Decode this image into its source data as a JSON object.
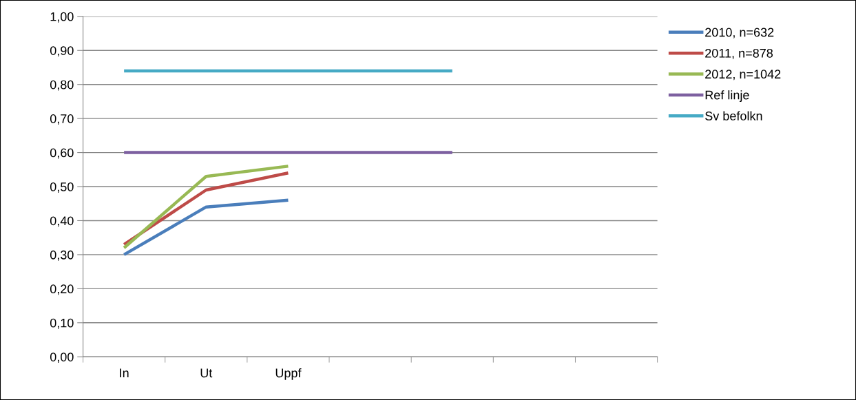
{
  "chart_data": {
    "type": "line",
    "categories": [
      "In",
      "Ut",
      "Uppf",
      null,
      null,
      null,
      null
    ],
    "series": [
      {
        "name": "2010, n=632",
        "color": "#4a7ebb",
        "values": [
          0.3,
          0.44,
          0.46,
          null,
          null,
          null,
          null
        ]
      },
      {
        "name": "2011, n=878",
        "color": "#be4b48",
        "values": [
          0.33,
          0.49,
          0.54,
          null,
          null,
          null,
          null
        ]
      },
      {
        "name": "2012, n=1042",
        "color": "#98b954",
        "values": [
          0.32,
          0.53,
          0.56,
          null,
          null,
          null,
          null
        ]
      },
      {
        "name": "Ref linje",
        "color": "#7d60a0",
        "values": [
          0.6,
          0.6,
          0.6,
          0.6,
          0.6,
          null,
          null
        ]
      },
      {
        "name": "Sv befolkn",
        "color": "#46aac5",
        "values": [
          0.84,
          0.84,
          0.84,
          0.84,
          0.84,
          null,
          null
        ]
      }
    ],
    "ylim": [
      0,
      1
    ],
    "yticks": [
      {
        "value": 0,
        "label": "0,00"
      },
      {
        "value": 0.1,
        "label": "0,10"
      },
      {
        "value": 0.2,
        "label": "0,20"
      },
      {
        "value": 0.3,
        "label": "0,30"
      },
      {
        "value": 0.4,
        "label": "0,40"
      },
      {
        "value": 0.5,
        "label": "0,50"
      },
      {
        "value": 0.6,
        "label": "0,60"
      },
      {
        "value": 0.7,
        "label": "0,70"
      },
      {
        "value": 0.8,
        "label": "0,80"
      },
      {
        "value": 0.9,
        "label": "0,90"
      },
      {
        "value": 1,
        "label": "1,00"
      }
    ],
    "grid": "y",
    "legend": "right",
    "marker": "none",
    "line_style": "solid"
  }
}
